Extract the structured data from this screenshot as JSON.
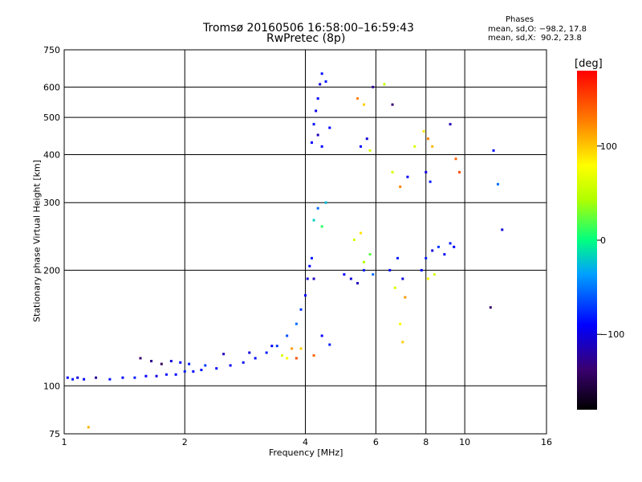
{
  "title": {
    "line1": "Tromsø 20160506 16:58:00–16:59:43",
    "line2": "RwPretec (8p)"
  },
  "phases": {
    "title": "Phases",
    "o_line": "mean, sd,O: −98.2, 17.8",
    "x_line": "mean, sd,X:  90.2, 23.8"
  },
  "colorbar": {
    "label": "[deg]",
    "ticks": [
      {
        "value": 100,
        "label": "100"
      },
      {
        "value": 0,
        "label": "0"
      },
      {
        "value": -100,
        "label": "−100"
      }
    ],
    "range": [
      -180,
      180
    ]
  },
  "chart_data": {
    "type": "scatter",
    "title": "Tromsø 20160506 16:58:00–16:59:43",
    "subtitle": "RwPretec (8p)",
    "xlabel": "Frequency [MHz]",
    "ylabel": "Stationary phase Virtual Height [km]",
    "x_scale": "log2",
    "y_scale": "log",
    "xlim": [
      1,
      16
    ],
    "ylim": [
      75,
      750
    ],
    "x_ticks": [
      {
        "value": 1,
        "label": "1"
      },
      {
        "value": 2,
        "label": "2"
      },
      {
        "value": 4,
        "label": "4"
      },
      {
        "value": 6,
        "label": "6"
      },
      {
        "value": 8,
        "label": "8"
      },
      {
        "value": 10,
        "label": "10"
      },
      {
        "value": 16,
        "label": "16"
      }
    ],
    "y_ticks": [
      {
        "value": 75,
        "label": "75"
      },
      {
        "value": 100,
        "label": "100"
      },
      {
        "value": 200,
        "label": "200"
      },
      {
        "value": 300,
        "label": "300"
      },
      {
        "value": 400,
        "label": "400"
      },
      {
        "value": 500,
        "label": "500"
      },
      {
        "value": 600,
        "label": "600"
      },
      {
        "value": 750,
        "label": "750"
      }
    ],
    "grid": true,
    "color_by": "phase_deg",
    "points": [
      [
        1.02,
        105,
        -100
      ],
      [
        1.05,
        104,
        -95
      ],
      [
        1.08,
        105,
        -110
      ],
      [
        1.12,
        104,
        -100
      ],
      [
        1.2,
        105,
        -130
      ],
      [
        1.3,
        104,
        -95
      ],
      [
        1.4,
        105,
        -100
      ],
      [
        1.5,
        105,
        -90
      ],
      [
        1.6,
        106,
        -100
      ],
      [
        1.7,
        106,
        -110
      ],
      [
        1.8,
        107,
        -95
      ],
      [
        1.9,
        107,
        -100
      ],
      [
        2.0,
        109,
        -90
      ],
      [
        2.1,
        109,
        -100
      ],
      [
        2.2,
        110,
        -95
      ],
      [
        2.4,
        111,
        -100
      ],
      [
        2.6,
        113,
        -105
      ],
      [
        2.8,
        115,
        -95
      ],
      [
        3.0,
        118,
        -100
      ],
      [
        3.2,
        122,
        -90
      ],
      [
        3.4,
        127,
        -80
      ],
      [
        3.6,
        135,
        -70
      ],
      [
        3.8,
        145,
        -60
      ],
      [
        3.9,
        158,
        -80
      ],
      [
        4.0,
        172,
        -100
      ],
      [
        4.05,
        190,
        -110
      ],
      [
        4.1,
        205,
        -100
      ],
      [
        4.15,
        215,
        -90
      ],
      [
        4.2,
        190,
        -120
      ],
      [
        1.55,
        118,
        -140
      ],
      [
        1.65,
        116,
        -130
      ],
      [
        1.75,
        114,
        -150
      ],
      [
        1.85,
        116,
        -110
      ],
      [
        1.95,
        115,
        -100
      ],
      [
        2.05,
        114,
        -90
      ],
      [
        2.25,
        113,
        -80
      ],
      [
        2.5,
        121,
        -120
      ],
      [
        2.9,
        122,
        -110
      ],
      [
        3.3,
        127,
        -100
      ],
      [
        3.5,
        120,
        60
      ],
      [
        3.6,
        118,
        80
      ],
      [
        3.7,
        125,
        120
      ],
      [
        3.8,
        118,
        150
      ],
      [
        3.9,
        125,
        100
      ],
      [
        4.2,
        120,
        140
      ],
      [
        4.15,
        430,
        -100
      ],
      [
        4.2,
        480,
        -95
      ],
      [
        4.25,
        520,
        -105
      ],
      [
        4.3,
        560,
        -100
      ],
      [
        4.35,
        610,
        -110
      ],
      [
        4.4,
        650,
        -95
      ],
      [
        4.3,
        450,
        -120
      ],
      [
        4.4,
        420,
        -100
      ],
      [
        4.5,
        620,
        -90
      ],
      [
        4.6,
        470,
        -100
      ],
      [
        4.5,
        300,
        -30
      ],
      [
        4.3,
        290,
        -60
      ],
      [
        4.2,
        270,
        -20
      ],
      [
        4.4,
        260,
        10
      ],
      [
        5.0,
        195,
        -100
      ],
      [
        5.2,
        190,
        -110
      ],
      [
        5.4,
        185,
        -120
      ],
      [
        5.6,
        200,
        -90
      ],
      [
        5.8,
        220,
        20
      ],
      [
        5.3,
        240,
        60
      ],
      [
        5.5,
        250,
        90
      ],
      [
        5.6,
        210,
        40
      ],
      [
        5.9,
        195,
        -60
      ],
      [
        5.5,
        420,
        -100
      ],
      [
        5.7,
        440,
        -110
      ],
      [
        5.8,
        410,
        60
      ],
      [
        5.6,
        540,
        100
      ],
      [
        5.4,
        560,
        130
      ],
      [
        5.9,
        600,
        -130
      ],
      [
        6.3,
        610,
        50
      ],
      [
        6.6,
        540,
        -140
      ],
      [
        6.5,
        200,
        -100
      ],
      [
        6.8,
        215,
        -90
      ],
      [
        7.0,
        190,
        -110
      ],
      [
        6.7,
        180,
        60
      ],
      [
        7.1,
        170,
        120
      ],
      [
        6.9,
        145,
        80
      ],
      [
        7.0,
        130,
        100
      ],
      [
        6.6,
        360,
        60
      ],
      [
        7.2,
        350,
        -100
      ],
      [
        6.9,
        330,
        130
      ],
      [
        7.5,
        420,
        60
      ],
      [
        7.8,
        200,
        -100
      ],
      [
        8.0,
        215,
        -90
      ],
      [
        8.3,
        225,
        -110
      ],
      [
        8.6,
        230,
        -80
      ],
      [
        8.9,
        220,
        -100
      ],
      [
        9.2,
        235,
        -90
      ],
      [
        9.4,
        230,
        -100
      ],
      [
        8.1,
        190,
        80
      ],
      [
        8.4,
        195,
        60
      ],
      [
        7.9,
        460,
        90
      ],
      [
        8.1,
        440,
        130
      ],
      [
        8.3,
        420,
        110
      ],
      [
        8.0,
        360,
        -110
      ],
      [
        8.2,
        340,
        -90
      ],
      [
        9.2,
        480,
        -120
      ],
      [
        9.5,
        390,
        140
      ],
      [
        9.7,
        360,
        150
      ],
      [
        11.8,
        410,
        -100
      ],
      [
        12.1,
        335,
        -60
      ],
      [
        12.4,
        255,
        -110
      ],
      [
        11.6,
        160,
        -140
      ],
      [
        1.15,
        78,
        110
      ],
      [
        4.4,
        135,
        -100
      ],
      [
        4.6,
        128,
        -90
      ]
    ]
  }
}
